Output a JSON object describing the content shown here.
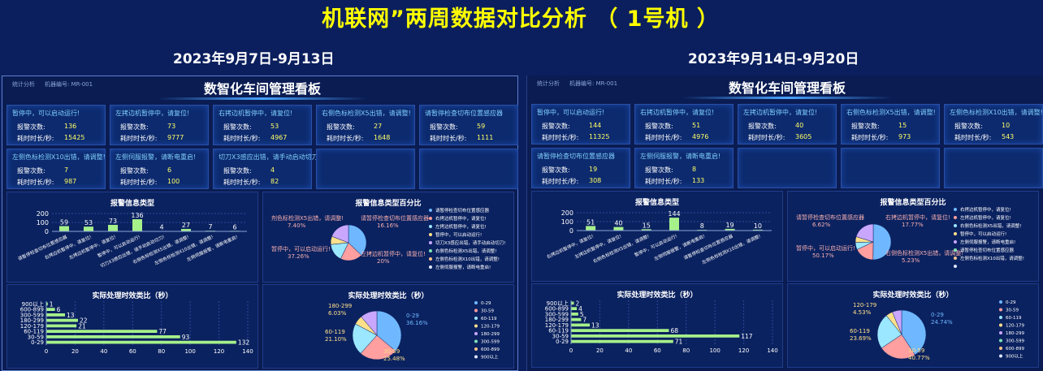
{
  "page_title": "机联网”两周数据对比分析  （    1号机      ）",
  "panels": [
    {
      "period": "2023年9月7日-9月13日",
      "tab_stats": "统计分析",
      "machine_label": "机器编号: MR-001",
      "board_title": "数智化车间管理看板",
      "count_label": "报警次数:",
      "dur_label": "耗时时长/秒:",
      "cards": [
        {
          "title": "暂停中，可以启动运行!",
          "count": "136",
          "duration": "15425"
        },
        {
          "title": "左拷边机暂停中，请复位!",
          "count": "73",
          "duration": "9777"
        },
        {
          "title": "右拷边机暂停中，请复位!",
          "count": "53",
          "duration": "4967"
        },
        {
          "title": "右侧色标检测X5出错，请调整!",
          "count": "27",
          "duration": "1648"
        },
        {
          "title": "请暂停检查切布位置感应器",
          "count": "59",
          "duration": "1111"
        },
        {
          "title": "左侧色标检测X10出错，请调整!",
          "count": "7",
          "duration": "987"
        },
        {
          "title": "左侧伺服报警，请断电重启!",
          "count": "6",
          "duration": "100"
        },
        {
          "title": "切刀X3感应出错，请手动启动切刀!",
          "count": "4",
          "duration": "82"
        }
      ],
      "bar_title": "报警信息类型",
      "bar_yticks": [
        "0",
        "100",
        "200"
      ],
      "bar_labels": [
        "59",
        "53",
        "73",
        "136",
        "4",
        "27",
        "7",
        "6"
      ],
      "bar_cats": [
        "请暂停检查切布位置感应器",
        "右拷边机暂停中，请复位!",
        "左拷边机暂停中，请复位!",
        "暂停中，可以启动运行!",
        "切刀X3感应出错，请手动启动切刀!",
        "右侧色标检测X5出错，请调整!",
        "左侧色标检测X10出错，请调整!",
        "左侧伺服报警，请断电重启!"
      ],
      "pie_title": "报警信息类型百分比",
      "pie_labels": [
        {
          "text": "剂色标检测X5出错，请调整!",
          "pct": "7.40%"
        },
        {
          "text": "请暂停检查切布位置感应器",
          "pct": "16.16%"
        },
        {
          "text": "暂停中，可以启动运行!",
          "pct": "37.26%"
        },
        {
          "text": "左拷边机暂停中，请复位!",
          "pct": "20%"
        }
      ],
      "pie_legend": [
        "请暂停检查切布位置感应器",
        "右拷边机暂停中，请复位!",
        "左拷边机暂停中，请复位!",
        "暂停中，可以启动运行!",
        "切刀X3感应出错，请手动启动切刀!",
        "右侧色标检测X5出错，请调整!",
        "左侧色标检测X10出错，请调整!",
        "左侧伺服报警，请断电重启!"
      ],
      "hbar_title": "实际处理时效类比（秒）",
      "hbar_cats": [
        "0-29",
        "30-59",
        "60-119",
        "120-179",
        "180-299",
        "300-599",
        "600-899",
        "900以上"
      ],
      "hbar_labels": [
        "132",
        "93",
        "77",
        "21",
        "22",
        "13",
        "6",
        "1"
      ],
      "hbar_xticks": [
        "0",
        "20",
        "40",
        "60",
        "80",
        "100",
        "120",
        "140"
      ],
      "donut_title": "实际处理时效类比（秒）",
      "donut_labels": [
        {
          "text": "180-299",
          "pct": "6.03%"
        },
        {
          "text": "0-29",
          "pct": "36.16%"
        },
        {
          "text": "60-119",
          "pct": "21.10%"
        },
        {
          "text": "30-59",
          "pct": "25.48%"
        }
      ],
      "donut_legend": [
        "0-29",
        "30-59",
        "60-119",
        "120-179",
        "180-299",
        "300-599",
        "600-899",
        "900以上"
      ]
    },
    {
      "period": "2023年9月14日-9月20日",
      "tab_stats": "统计分析",
      "machine_label": "机器编号: MR-001",
      "board_title": "数智化车间管理看板",
      "count_label": "报警次数:",
      "dur_label": "耗时时长/秒:",
      "cards": [
        {
          "title": "暂停中，可以启动运行!",
          "count": "144",
          "duration": "11325"
        },
        {
          "title": "右拷边机暂停中，请复位!",
          "count": "51",
          "duration": "4976"
        },
        {
          "title": "左拷边机暂停中，请复位!",
          "count": "40",
          "duration": "3605"
        },
        {
          "title": "右侧色标检测X5出错，请调整!",
          "count": "15",
          "duration": "973"
        },
        {
          "title": "左侧色标检测X10出错，请调整!",
          "count": "10",
          "duration": "543"
        },
        {
          "title": "请暂停检查切布位置感应器",
          "count": "19",
          "duration": "308"
        },
        {
          "title": "左侧伺服报警，请断电重启!",
          "count": "8",
          "duration": "133"
        }
      ],
      "bar_title": "报警信息类型",
      "bar_yticks": [
        "0",
        "100",
        "200"
      ],
      "bar_labels": [
        "51",
        "40",
        "15",
        "144",
        "8",
        "19",
        "10"
      ],
      "bar_cats": [
        "右拷边机暂停中，请复位!",
        "左拷边机暂停中，请复位!",
        "右侧色标检测X5出错，请调整!",
        "暂停中，可以启动运行!",
        "左侧伺服报警，请断电重启!",
        "请暂停检查切布位置感应器",
        "左侧色标检测X10出错，请调整!"
      ],
      "pie_title": "报警信息类型百分比",
      "pie_labels": [
        {
          "text": "请暂停检查切布位置感应器",
          "pct": "6.62%"
        },
        {
          "text": "右拷边机暂停中，请复位!",
          "pct": "17.77%"
        },
        {
          "text": "暂停中，可以启动运行!",
          "pct": "50.17%"
        },
        {
          "text": "右侧色标检测X5出错，请调整!",
          "pct": "5.23%"
        }
      ],
      "pie_legend": [
        "右拷边机暂停中，请复位!",
        "左拷边机暂停中，请复位!",
        "右侧色标检测X5出错，请调整!",
        "暂停中，可以启动运行!",
        "左侧伺服报警，请断电重启!",
        "请暂停检查切布位置感应器",
        "左侧色标检测X10出错，请调整!",
        ""
      ],
      "hbar_title": "实际处理时效类比（秒）",
      "hbar_cats": [
        "0-29",
        "30-59",
        "60-119",
        "120-179",
        "180-299",
        "300-599",
        "600-899",
        "900以上"
      ],
      "hbar_labels": [
        "71",
        "117",
        "68",
        "13",
        "7",
        "5",
        "4",
        "2"
      ],
      "hbar_xticks": [
        "0",
        "20",
        "40",
        "60",
        "80",
        "100",
        "120",
        "140"
      ],
      "donut_title": "实际处理时效类比（秒）",
      "donut_labels": [
        {
          "text": "120-179",
          "pct": "4.53%"
        },
        {
          "text": "0-29",
          "pct": "24.74%"
        },
        {
          "text": "60-119",
          "pct": "23.69%"
        },
        {
          "text": "30-59",
          "pct": "40.77%"
        }
      ],
      "donut_legend": [
        "0-29",
        "30-59",
        "60-119",
        "120-179",
        "180-299",
        "300-599",
        "600-899",
        "900以上"
      ]
    }
  ],
  "colors": {
    "background": "#0b1f5e",
    "title": "#ffff00",
    "bar": "#a6f08a",
    "card_value": "#ffff66",
    "card_title": "#7fd0ff"
  },
  "chart_data": [
    {
      "type": "bar",
      "title": "报警信息类型",
      "period": "2023年9月7日-9月13日",
      "categories": [
        "请暂停检查切布位置感应器",
        "右拷边机暂停中，请复位!",
        "左拷边机暂停中，请复位!",
        "暂停中，可以启动运行!",
        "切刀X3感应出错，请手动启动切刀!",
        "右侧色标检测X5出错，请调整!",
        "左侧色标检测X10出错，请调整!",
        "左侧伺服报警，请断电重启!"
      ],
      "values": [
        59,
        53,
        73,
        136,
        4,
        27,
        7,
        6
      ],
      "ylim": [
        0,
        200
      ]
    },
    {
      "type": "pie",
      "title": "报警信息类型百分比",
      "period": "2023年9月7日-9月13日",
      "labels": [
        "暂停中，可以启动运行!",
        "左拷边机暂停中，请复位!",
        "请暂停检查切布位置感应器",
        "剂色标检测X5出错，请调整!"
      ],
      "values": [
        37.26,
        20,
        16.16,
        7.4
      ]
    },
    {
      "type": "bar",
      "orientation": "horizontal",
      "title": "实际处理时效类比（秒）",
      "period": "2023年9月7日-9月13日",
      "categories": [
        "0-29",
        "30-59",
        "60-119",
        "120-179",
        "180-299",
        "300-599",
        "600-899",
        "900以上"
      ],
      "values": [
        132,
        93,
        77,
        21,
        22,
        13,
        6,
        1
      ],
      "xlim": [
        0,
        140
      ]
    },
    {
      "type": "pie",
      "title": "实际处理时效类比（秒）",
      "period": "2023年9月7日-9月13日",
      "labels": [
        "0-29",
        "30-59",
        "60-119",
        "180-299"
      ],
      "values": [
        36.16,
        25.48,
        21.1,
        6.03
      ]
    },
    {
      "type": "bar",
      "title": "报警信息类型",
      "period": "2023年9月14日-9月20日",
      "categories": [
        "右拷边机暂停中，请复位!",
        "左拷边机暂停中，请复位!",
        "右侧色标检测X5出错，请调整!",
        "暂停中，可以启动运行!",
        "左侧伺服报警，请断电重启!",
        "请暂停检查切布位置感应器",
        "左侧色标检测X10出错，请调整!"
      ],
      "values": [
        51,
        40,
        15,
        144,
        8,
        19,
        10
      ],
      "ylim": [
        0,
        200
      ]
    },
    {
      "type": "pie",
      "title": "报警信息类型百分比",
      "period": "2023年9月14日-9月20日",
      "labels": [
        "暂停中，可以启动运行!",
        "右拷边机暂停中，请复位!",
        "请暂停检查切布位置感应器",
        "右侧色标检测X5出错，请调整!"
      ],
      "values": [
        50.17,
        17.77,
        6.62,
        5.23
      ]
    },
    {
      "type": "bar",
      "orientation": "horizontal",
      "title": "实际处理时效类比（秒）",
      "period": "2023年9月14日-9月20日",
      "categories": [
        "0-29",
        "30-59",
        "60-119",
        "120-179",
        "180-299",
        "300-599",
        "600-899",
        "900以上"
      ],
      "values": [
        71,
        117,
        68,
        13,
        7,
        5,
        4,
        2
      ],
      "xlim": [
        0,
        140
      ]
    },
    {
      "type": "pie",
      "title": "实际处理时效类比（秒）",
      "period": "2023年9月14日-9月20日",
      "labels": [
        "30-59",
        "0-29",
        "60-119",
        "120-179"
      ],
      "values": [
        40.77,
        24.74,
        23.69,
        4.53
      ]
    }
  ]
}
